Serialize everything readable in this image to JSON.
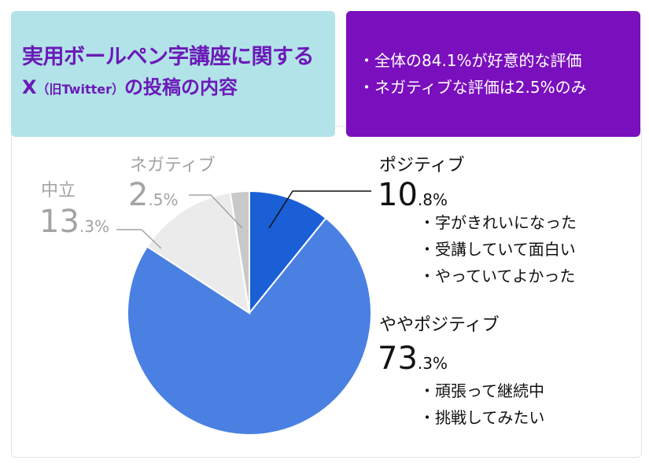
{
  "header": {
    "title_line1": "実用ボールペン字講座に関する",
    "title_line2_main": "X",
    "title_line2_paren": "（旧Twitter）",
    "title_line2_end": "の投稿の内容"
  },
  "summary": {
    "line1": "・全体の84.1%が好意的な評価",
    "line2": "・ネガティブな評価は2.5%のみ"
  },
  "chart_data": {
    "type": "pie",
    "slices": [
      {
        "label": "ポジティブ",
        "value": 10.8,
        "big": "10",
        "small": ".8%",
        "color": "#1a5fd6",
        "comments": [
          "・字がきれいになった",
          "・受講していて面白い",
          "・やっていてよかった"
        ]
      },
      {
        "label": "ややポジティブ",
        "value": 73.3,
        "big": "73",
        "small": ".3%",
        "color": "#4a80e2",
        "comments": [
          "・頑張って継続中",
          "・挑戦してみたい"
        ]
      },
      {
        "label": "中立",
        "value": 13.3,
        "big": "13",
        "small": ".3%",
        "color": "#ebebeb",
        "comments": []
      },
      {
        "label": "ネガティブ",
        "value": 2.5,
        "big": "2",
        "small": ".5%",
        "color": "#c9c9c9",
        "comments": []
      }
    ]
  }
}
